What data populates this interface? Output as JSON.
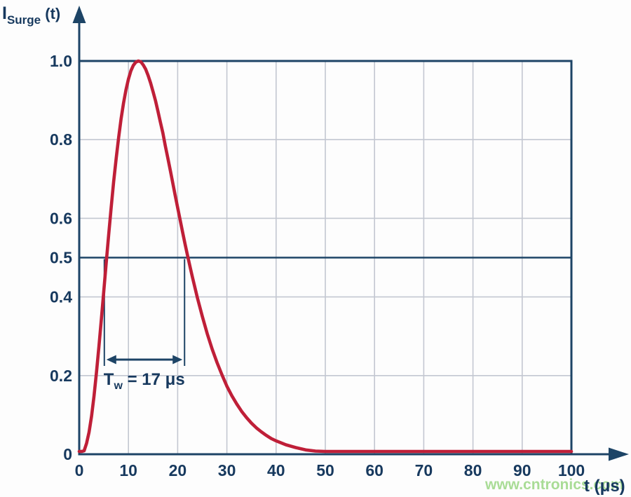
{
  "chart_data": {
    "type": "line",
    "title": "",
    "y_axis": {
      "label_symbol": "I",
      "label_subscript": "Surge",
      "label_suffix": " (t)",
      "ticks": [
        {
          "value": 0,
          "label": "0"
        },
        {
          "value": 0.2,
          "label": "0.2"
        },
        {
          "value": 0.4,
          "label": "0.4"
        },
        {
          "value": 0.5,
          "label": "0.5"
        },
        {
          "value": 0.6,
          "label": "0.6"
        },
        {
          "value": 0.8,
          "label": "0.8"
        },
        {
          "value": 1.0,
          "label": "1.0"
        }
      ],
      "range": [
        0,
        1.08
      ],
      "gridline_values": [
        0.2,
        0.4,
        0.6,
        0.8
      ]
    },
    "x_axis": {
      "label": "t (μs)",
      "ticks": [
        {
          "value": 0,
          "label": "0"
        },
        {
          "value": 10,
          "label": "10"
        },
        {
          "value": 20,
          "label": "20"
        },
        {
          "value": 30,
          "label": "30"
        },
        {
          "value": 40,
          "label": "40"
        },
        {
          "value": 50,
          "label": "50"
        },
        {
          "value": 60,
          "label": "60"
        },
        {
          "value": 70,
          "label": "70"
        },
        {
          "value": 80,
          "label": "80"
        },
        {
          "value": 90,
          "label": "90"
        },
        {
          "value": 100,
          "label": "100"
        }
      ],
      "range": [
        0,
        110
      ],
      "gridline_values": [
        10,
        20,
        30,
        40,
        50,
        60,
        70,
        80,
        90
      ]
    },
    "reference_lines": [
      {
        "axis": "y",
        "value": 1.0,
        "style": "border"
      },
      {
        "axis": "y",
        "value": 0.5,
        "style": "solid"
      }
    ],
    "grid": {
      "visible": true,
      "legend": "none"
    },
    "series": [
      {
        "name": "surge-current-pulse",
        "color": "#bf1f38",
        "peak": {
          "t": 12,
          "value": 1.0
        },
        "points": [
          [
            0,
            0
          ],
          [
            0.5,
            0.001
          ],
          [
            1,
            0.009
          ],
          [
            1.5,
            0.028
          ],
          [
            2,
            0.056
          ],
          [
            2.5,
            0.097
          ],
          [
            3,
            0.148
          ],
          [
            3.5,
            0.208
          ],
          [
            4,
            0.274
          ],
          [
            4.5,
            0.344
          ],
          [
            5,
            0.416
          ],
          [
            5.5,
            0.489
          ],
          [
            6,
            0.56
          ],
          [
            6.5,
            0.628
          ],
          [
            7,
            0.693
          ],
          [
            7.5,
            0.752
          ],
          [
            8,
            0.805
          ],
          [
            8.5,
            0.853
          ],
          [
            9,
            0.893
          ],
          [
            9.5,
            0.927
          ],
          [
            10,
            0.954
          ],
          [
            10.5,
            0.975
          ],
          [
            11,
            0.989
          ],
          [
            11.5,
            0.997
          ],
          [
            12,
            1
          ],
          [
            12.5,
            0.998
          ],
          [
            13,
            0.99
          ],
          [
            13.5,
            0.979
          ],
          [
            14,
            0.963
          ],
          [
            14.5,
            0.944
          ],
          [
            15,
            0.922
          ],
          [
            15.5,
            0.899
          ],
          [
            16,
            0.872
          ],
          [
            16.5,
            0.844
          ],
          [
            17,
            0.817
          ],
          [
            17.5,
            0.784
          ],
          [
            18,
            0.753
          ],
          [
            18.5,
            0.722
          ],
          [
            19,
            0.69
          ],
          [
            19.5,
            0.658
          ],
          [
            20,
            0.627
          ],
          [
            20.5,
            0.596
          ],
          [
            21,
            0.565
          ],
          [
            21.5,
            0.535
          ],
          [
            22,
            0.506
          ],
          [
            22.5,
            0.478
          ],
          [
            23,
            0.45
          ],
          [
            24,
            0.398
          ],
          [
            25,
            0.351
          ],
          [
            26,
            0.307
          ],
          [
            27,
            0.268
          ],
          [
            28,
            0.233
          ],
          [
            29,
            0.202
          ],
          [
            30,
            0.173
          ],
          [
            31,
            0.149
          ],
          [
            32,
            0.128
          ],
          [
            33,
            0.109
          ],
          [
            34,
            0.093
          ],
          [
            35,
            0.079
          ],
          [
            36,
            0.067
          ],
          [
            37,
            0.057
          ],
          [
            38,
            0.048
          ],
          [
            39,
            0.04
          ],
          [
            40,
            0.034
          ],
          [
            42,
            0.024
          ],
          [
            44,
            0.017
          ],
          [
            46,
            0.011
          ],
          [
            48,
            0.008
          ],
          [
            50,
            0.006
          ],
          [
            55,
            0.003
          ],
          [
            60,
            0.002
          ],
          [
            65,
            0.001
          ],
          [
            70,
            0.001
          ],
          [
            75,
            0
          ],
          [
            80,
            0
          ],
          [
            85,
            0
          ],
          [
            90,
            0
          ],
          [
            95,
            0
          ],
          [
            100,
            0
          ]
        ]
      }
    ],
    "annotation": {
      "symbol": "T",
      "subscript": "w",
      "suffix": " = 17 μs",
      "full_text": "Tw = 17 μs",
      "half_level": 0.5,
      "t_start": 5.1,
      "t_end": 21.4
    }
  },
  "watermark": {
    "text": "www.cntronics.com"
  },
  "colors": {
    "navy": "#17395e",
    "axis_navy": "#1d4466",
    "grid_gray": "#c3c7d1",
    "curve_red": "#bf1f38",
    "watermark_green": "#a9dc96",
    "background": "#fdfdfd"
  }
}
